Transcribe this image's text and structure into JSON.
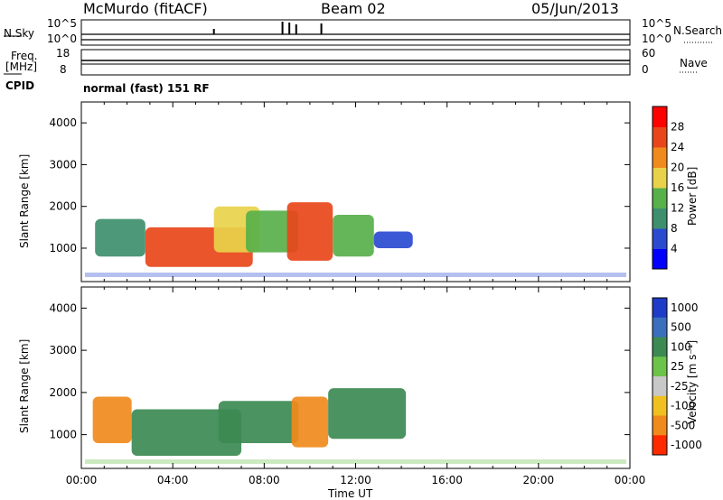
{
  "header": {
    "station": "McMurdo (fitACF)",
    "beam": "Beam 02",
    "date": "05/Jun/2013"
  },
  "strips": {
    "nsky_label": "N.Sky",
    "nsky_top": "10^5",
    "nsky_bottom": "10^0",
    "nsearch_label": "N.Search",
    "nsearch_top": "10^5",
    "nsearch_bottom": "10^0",
    "freq_label_1": "Freq.",
    "freq_label_2": "[MHz]",
    "freq_top": "18",
    "freq_bottom": "8",
    "nave_label": "Nave",
    "nave_top": "60",
    "nave_bottom": "0",
    "cpid_label": "CPID",
    "cpid_text": "normal (fast) 151 RF"
  },
  "chart_data": [
    {
      "type": "heatmap",
      "name": "power",
      "ylabel": "Slant Range [km]",
      "xlim": [
        0,
        24
      ],
      "ylim": [
        200,
        4500
      ],
      "y_ticks": [
        "1000",
        "2000",
        "3000",
        "4000"
      ],
      "colorbar": {
        "label": "Power [dB]",
        "ticks": [
          "4",
          "8",
          "12",
          "16",
          "20",
          "24",
          "28"
        ],
        "colors": [
          "#0000ff",
          "#2a4bd0",
          "#3e8f6e",
          "#58b04a",
          "#e8d24a",
          "#f08a1c",
          "#e8461a",
          "#ff0000"
        ]
      },
      "regions": [
        {
          "t0": 0.6,
          "t1": 2.8,
          "r0": 800,
          "r1": 1700,
          "level": 10
        },
        {
          "t0": 2.8,
          "t1": 7.5,
          "r0": 550,
          "r1": 1500,
          "level": 26
        },
        {
          "t0": 5.8,
          "t1": 7.8,
          "r0": 900,
          "r1": 2000,
          "level": 16
        },
        {
          "t0": 7.2,
          "t1": 9.5,
          "r0": 900,
          "r1": 1900,
          "level": 12
        },
        {
          "t0": 9.0,
          "t1": 11.0,
          "r0": 700,
          "r1": 2100,
          "level": 24
        },
        {
          "t0": 11.0,
          "t1": 12.8,
          "r0": 800,
          "r1": 1800,
          "level": 12
        },
        {
          "t0": 12.8,
          "t1": 14.5,
          "r0": 1000,
          "r1": 1400,
          "level": 6
        }
      ]
    },
    {
      "type": "heatmap",
      "name": "velocity",
      "ylabel": "Slant Range [km]",
      "xlabel": "Time UT",
      "xlim": [
        0,
        24
      ],
      "ylim": [
        200,
        4500
      ],
      "y_ticks": [
        "1000",
        "2000",
        "3000",
        "4000"
      ],
      "x_ticks": [
        "00:00",
        "04:00",
        "08:00",
        "12:00",
        "16:00",
        "20:00",
        "00:00"
      ],
      "colorbar": {
        "label": "Velocity [m s⁻¹]",
        "ticks": [
          "1000",
          "500",
          "100",
          "25",
          "-25",
          "-100",
          "-500",
          "-1000"
        ],
        "colors": [
          "#1e3cc8",
          "#3a6fbd",
          "#3c8a52",
          "#6cc34a",
          "#c8c8c8",
          "#f0c020",
          "#f08a1c",
          "#ff2a00"
        ]
      },
      "regions": [
        {
          "t0": 0.5,
          "t1": 2.2,
          "r0": 800,
          "r1": 1900,
          "level": -300
        },
        {
          "t0": 2.2,
          "t1": 7.0,
          "r0": 500,
          "r1": 1600,
          "level": 120
        },
        {
          "t0": 6.0,
          "t1": 9.5,
          "r0": 800,
          "r1": 1800,
          "level": 200
        },
        {
          "t0": 9.2,
          "t1": 10.8,
          "r0": 700,
          "r1": 1900,
          "level": -300
        },
        {
          "t0": 10.8,
          "t1": 14.2,
          "r0": 900,
          "r1": 2100,
          "level": 150
        }
      ]
    }
  ]
}
